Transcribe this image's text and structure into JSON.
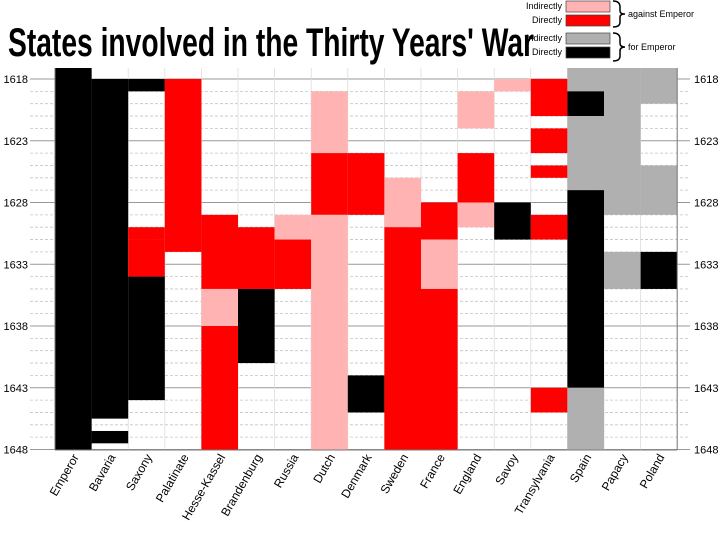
{
  "chart_data": {
    "type": "heatmap",
    "title": "States involved in the Thirty Years' War",
    "categories": [
      "Emperor",
      "Bavaria",
      "Saxony",
      "Palatinate",
      "Hesse-Kassel",
      "Brandenburg",
      "Russia",
      "Dutch",
      "Denmark",
      "Sweden",
      "France",
      "England",
      "Savoy",
      "Transylvania",
      "Spain",
      "Papacy",
      "Poland"
    ],
    "y_ticks": [
      "1618",
      "1623",
      "1628",
      "1633",
      "1638",
      "1643",
      "1648"
    ],
    "ylim": [
      1618,
      1648
    ],
    "legend": {
      "against_label": "against Emperor",
      "for_label": "for Emperor",
      "entries": [
        {
          "key": "ai",
          "label": "Indirectly",
          "color": "#ffb3b3"
        },
        {
          "key": "ad",
          "label": "Directly",
          "color": "#ff0000"
        },
        {
          "key": "fi",
          "label": "Indirectly",
          "color": "#b0b0b0"
        },
        {
          "key": "fd",
          "label": "Directly",
          "color": "#000000"
        }
      ]
    },
    "involvement": [
      {
        "state": "Emperor",
        "spans": [
          [
            1617,
            1648,
            "fd"
          ]
        ]
      },
      {
        "state": "Bavaria",
        "spans": [
          [
            1618,
            1645.5,
            "fd"
          ],
          [
            1646.5,
            1647.5,
            "fd"
          ]
        ]
      },
      {
        "state": "Saxony",
        "spans": [
          [
            1618,
            1619,
            "fd"
          ],
          [
            1630,
            1631,
            "ad"
          ],
          [
            1631,
            1634,
            "ad"
          ],
          [
            1634,
            1644,
            "fd"
          ]
        ]
      },
      {
        "state": "Palatinate",
        "spans": [
          [
            1618,
            1632,
            "ad"
          ]
        ]
      },
      {
        "state": "Hesse-Kassel",
        "spans": [
          [
            1629,
            1635,
            "ad"
          ],
          [
            1635,
            1638,
            "ai"
          ],
          [
            1638,
            1648,
            "ad"
          ]
        ]
      },
      {
        "state": "Brandenburg",
        "spans": [
          [
            1630,
            1635,
            "ad"
          ],
          [
            1635,
            1641,
            "fd"
          ]
        ]
      },
      {
        "state": "Russia",
        "spans": [
          [
            1629,
            1631,
            "ai"
          ],
          [
            1631,
            1635,
            "ad"
          ]
        ]
      },
      {
        "state": "Dutch",
        "spans": [
          [
            1619,
            1624,
            "ai"
          ],
          [
            1624,
            1629,
            "ad"
          ],
          [
            1629,
            1648,
            "ai"
          ]
        ]
      },
      {
        "state": "Denmark",
        "spans": [
          [
            1624,
            1629,
            "ad"
          ],
          [
            1642,
            1645,
            "fd"
          ]
        ]
      },
      {
        "state": "Sweden",
        "spans": [
          [
            1626,
            1630,
            "ai"
          ],
          [
            1630,
            1648,
            "ad"
          ]
        ]
      },
      {
        "state": "France",
        "spans": [
          [
            1628,
            1631,
            "ad"
          ],
          [
            1631,
            1635,
            "ai"
          ],
          [
            1635,
            1648,
            "ad"
          ]
        ]
      },
      {
        "state": "England",
        "spans": [
          [
            1619,
            1622,
            "ai"
          ],
          [
            1624,
            1628,
            "ad"
          ],
          [
            1628,
            1630,
            "ai"
          ]
        ]
      },
      {
        "state": "Savoy",
        "spans": [
          [
            1618,
            1619,
            "ai"
          ],
          [
            1628,
            1631,
            "fd"
          ]
        ]
      },
      {
        "state": "Transylvania",
        "spans": [
          [
            1618,
            1621,
            "ad"
          ],
          [
            1622,
            1624,
            "ad"
          ],
          [
            1625,
            1626,
            "ad"
          ],
          [
            1629,
            1631,
            "ad"
          ],
          [
            1643,
            1645,
            "ad"
          ]
        ]
      },
      {
        "state": "Spain",
        "spans": [
          [
            1617,
            1619,
            "fi"
          ],
          [
            1619,
            1621,
            "fd"
          ],
          [
            1621,
            1627,
            "fi"
          ],
          [
            1627,
            1643,
            "fd"
          ],
          [
            1643,
            1648,
            "fi"
          ]
        ]
      },
      {
        "state": "Papacy",
        "spans": [
          [
            1617,
            1629,
            "fi"
          ],
          [
            1632,
            1635,
            "fi"
          ]
        ]
      },
      {
        "state": "Poland",
        "spans": [
          [
            1617,
            1618,
            "fi"
          ],
          [
            1618,
            1620,
            "fi"
          ],
          [
            1625,
            1629,
            "fi"
          ],
          [
            1632,
            1635,
            "fd"
          ]
        ]
      }
    ]
  }
}
